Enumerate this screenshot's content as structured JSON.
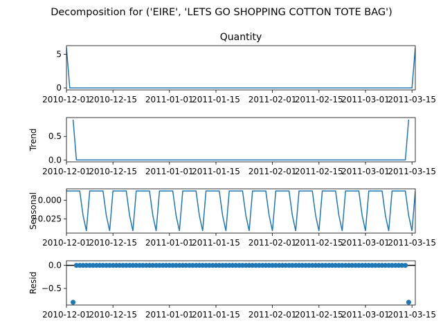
{
  "figure": {
    "suptitle": "Decomposition for ('EIRE', 'LETS GO SHOPPING COTTON TOTE BAG')"
  },
  "colors": {
    "line": "#1f77b4",
    "axes": "#000000",
    "background": "#ffffff",
    "resid_zero_line": "#000000"
  },
  "chart_data": [
    {
      "id": "observed",
      "type": "line",
      "title": "Quantity",
      "ylabel": "",
      "x": [
        "2010-12-01",
        "2010-12-02",
        "2011-03-15",
        "2011-03-16"
      ],
      "values": [
        6,
        0,
        0,
        6
      ],
      "xlim": [
        "2010-12-01",
        "2011-03-16"
      ],
      "ylim": [
        -0.3,
        6.3
      ],
      "yticks": [
        0,
        5
      ],
      "xtick_labels": [
        "2010-12-01",
        "2010-12-15",
        "2011-01-01",
        "2011-01-15",
        "2011-02-01",
        "2011-02-15",
        "2011-03-01",
        "2011-03-15"
      ],
      "grid": false
    },
    {
      "id": "trend",
      "type": "line",
      "title": "",
      "ylabel": "Trend",
      "x": [
        "2010-12-03",
        "2010-12-04",
        "2011-03-13",
        "2011-03-14"
      ],
      "values": [
        0.857,
        0,
        0,
        0.857
      ],
      "xlim": [
        "2010-12-01",
        "2011-03-16"
      ],
      "ylim": [
        -0.04,
        0.9
      ],
      "yticks": [
        0.0,
        0.5
      ],
      "ytick_labels": [
        "0.0",
        "0.5"
      ],
      "xtick_labels": [
        "2010-12-01",
        "2010-12-15",
        "2011-01-01",
        "2011-01-15",
        "2011-02-01",
        "2011-02-15",
        "2011-03-01",
        "2011-03-15"
      ],
      "grid": false
    },
    {
      "id": "seasonal",
      "type": "line",
      "title": "",
      "ylabel": "Seasonal",
      "start": "2010-12-01",
      "end": "2011-03-16",
      "period_days": 7,
      "weekly_pattern": [
        0.0122,
        0.0122,
        0.0122,
        0.0122,
        0.0122,
        -0.0204,
        -0.0408
      ],
      "xlim": [
        "2010-12-01",
        "2011-03-16"
      ],
      "ylim": [
        -0.0437,
        0.0151
      ],
      "yticks": [
        0.0,
        -0.025
      ],
      "ytick_labels": [
        "0.000",
        "−0.025"
      ],
      "xtick_labels": [
        "2010-12-01",
        "2010-12-15",
        "2011-01-01",
        "2011-01-15",
        "2011-02-01",
        "2011-02-15",
        "2011-03-01",
        "2011-03-15"
      ],
      "grid": false
    },
    {
      "id": "resid",
      "type": "scatter",
      "title": "",
      "ylabel": "Resid",
      "start": "2010-12-03",
      "end": "2011-03-14",
      "base_value": 0.0,
      "exceptions": {
        "2010-12-03": -0.8,
        "2011-03-14": -0.8
      },
      "xlim": [
        "2010-12-01",
        "2011-03-16"
      ],
      "ylim": [
        -0.86,
        0.1
      ],
      "yticks": [
        0.0,
        -0.5
      ],
      "ytick_labels": [
        "0.0",
        "−0.5"
      ],
      "zero_line": true,
      "xtick_labels": [
        "2010-12-01",
        "2010-12-15",
        "2011-01-01",
        "2011-01-15",
        "2011-02-01",
        "2011-02-15",
        "2011-03-01",
        "2011-03-15"
      ],
      "grid": false
    }
  ]
}
